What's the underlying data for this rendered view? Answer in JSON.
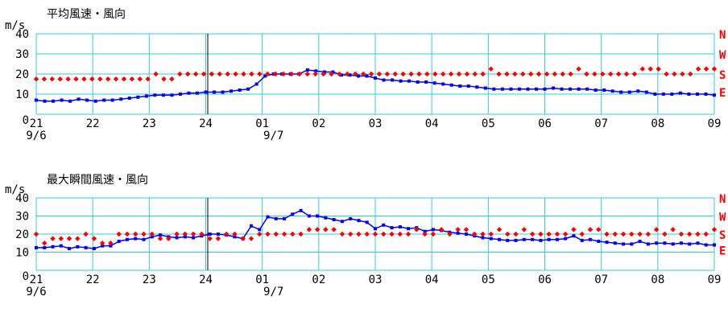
{
  "colors": {
    "grid": "#33ccdd",
    "speed": "#0000ff",
    "direction": "#ff0000",
    "frame": "#000000"
  },
  "chart_data": [
    {
      "type": "line",
      "title": "平均風速・風向",
      "ylabel": "m/s",
      "ylim": [
        0,
        40
      ],
      "yticks": [
        "0",
        "10",
        "20",
        "30",
        "40"
      ],
      "direction_labels": [
        "N",
        "W",
        "S",
        "E"
      ],
      "x_tick_labels": [
        "21",
        "22",
        "23",
        "24",
        "01",
        "02",
        "03",
        "04",
        "05",
        "06",
        "07",
        "08",
        "09"
      ],
      "date_labels": [
        "9/6",
        "9/7"
      ],
      "series": [
        {
          "kind": "speed",
          "values": [
            7,
            6.5,
            6.5,
            7,
            6.5,
            7.5,
            7,
            6.5,
            7,
            7,
            7.5,
            8,
            8.5,
            9,
            9.5,
            9.5,
            9.5,
            10,
            10.5,
            10.5,
            11,
            11,
            11,
            11.5,
            12,
            12.5,
            15,
            19,
            20,
            20,
            20,
            20,
            22,
            21.5,
            21,
            21,
            19.5,
            19.5,
            19,
            19,
            18,
            17,
            17,
            16.5,
            16.5,
            16,
            16,
            15.5,
            15,
            14.5,
            14,
            14,
            13.5,
            13,
            12.5,
            12.5,
            12.5,
            12.5,
            12.5,
            12.5,
            12.5,
            13,
            12.5,
            12.5,
            12.5,
            12.5,
            12,
            12,
            11.5,
            11,
            11,
            11.5,
            11,
            10,
            10,
            10,
            10.5,
            10,
            10,
            10,
            9.5
          ]
        },
        {
          "kind": "direction",
          "values": [
            17.5,
            17.5,
            17.5,
            17.5,
            17.5,
            17.5,
            17.5,
            17.5,
            17.5,
            17.5,
            17.5,
            17.5,
            17.5,
            17.5,
            17.5,
            20,
            17.5,
            17.5,
            20,
            20,
            20,
            20,
            20,
            20,
            20,
            20,
            20,
            20,
            20,
            20,
            20,
            20,
            20,
            20,
            20,
            20,
            20,
            20,
            20,
            20,
            20,
            20,
            20,
            20,
            20,
            20,
            20,
            20,
            20,
            20,
            20,
            20,
            20,
            20,
            20,
            20,
            20,
            22.5,
            20,
            20,
            20,
            20,
            20,
            20,
            20,
            20,
            20,
            20,
            22.5,
            20,
            20,
            20,
            20,
            20,
            20,
            20,
            22.5,
            22.5,
            22.5,
            20,
            20,
            20,
            20,
            22.5,
            22.5,
            22.5
          ]
        }
      ]
    },
    {
      "type": "line",
      "title": "最大瞬間風速・風向",
      "ylabel": "m/s",
      "ylim": [
        0,
        40
      ],
      "yticks": [
        "0",
        "10",
        "20",
        "30",
        "40"
      ],
      "direction_labels": [
        "N",
        "W",
        "S",
        "E"
      ],
      "x_tick_labels": [
        "21",
        "22",
        "23",
        "24",
        "01",
        "02",
        "03",
        "04",
        "05",
        "06",
        "07",
        "08",
        "09"
      ],
      "date_labels": [
        "9/6",
        "9/7"
      ],
      "series": [
        {
          "kind": "speed",
          "values": [
            12.5,
            12.5,
            13,
            13.5,
            12,
            13,
            12.5,
            12,
            13.5,
            13.5,
            16,
            17,
            17.5,
            17,
            18.5,
            19.5,
            18.5,
            18,
            18.5,
            18,
            19,
            20,
            20,
            19.5,
            18.5,
            17.5,
            24.5,
            22.5,
            29.5,
            28.5,
            28.5,
            31,
            33,
            30,
            30,
            29,
            28,
            27,
            28.5,
            27.5,
            26.5,
            23,
            25,
            23.5,
            24,
            23,
            23.5,
            21.5,
            22.5,
            22,
            21,
            20.5,
            20,
            19,
            18,
            17.5,
            17,
            16.5,
            16.5,
            17,
            17,
            16.5,
            17,
            17,
            17.5,
            19,
            16.5,
            17,
            16,
            15.5,
            15,
            14.5,
            14.5,
            16,
            14.5,
            15,
            15,
            14.5,
            15,
            14.5,
            15,
            14,
            14
          ]
        },
        {
          "kind": "direction",
          "values": [
            20,
            15,
            17.5,
            17.5,
            17.5,
            17.5,
            20,
            17.5,
            15,
            15,
            20,
            20,
            20,
            20,
            20,
            17.5,
            17.5,
            20,
            20,
            20,
            20,
            17.5,
            17.5,
            20,
            20,
            17.5,
            17.5,
            20,
            20,
            20,
            20,
            20,
            20,
            22.5,
            22.5,
            22.5,
            22.5,
            20,
            20,
            20,
            20,
            20,
            20,
            20,
            20,
            20,
            22.5,
            20,
            20,
            22.5,
            20,
            22.5,
            22.5,
            20,
            20,
            20,
            22.5,
            20,
            20,
            22.5,
            20,
            20,
            20,
            20,
            20,
            22.5,
            20,
            22.5,
            22.5,
            20,
            20,
            20,
            20,
            20,
            20,
            22.5,
            20,
            22.5,
            20,
            20,
            20,
            20,
            22.5
          ]
        }
      ]
    }
  ]
}
